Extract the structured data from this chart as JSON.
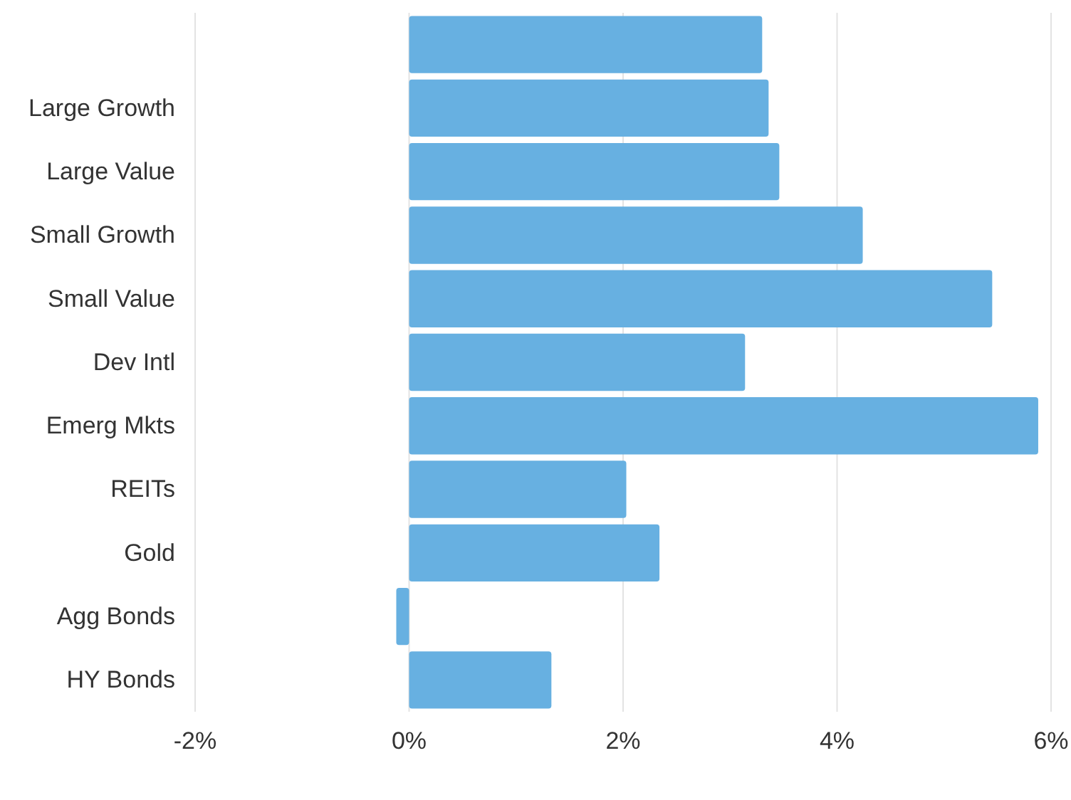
{
  "chart_data": {
    "type": "bar",
    "orientation": "horizontal",
    "categories": [
      null,
      "Large Growth",
      "Large Value",
      "Small Growth",
      "Small Value",
      "Dev Intl",
      "Emerg Mkts",
      "REITs",
      "Gold",
      "Agg Bonds",
      "HY Bonds"
    ],
    "values": [
      3.3,
      3.36,
      3.46,
      4.24,
      5.45,
      3.14,
      5.88,
      2.03,
      2.34,
      -0.12,
      1.33
    ],
    "color": "#67b0e1",
    "xlim": [
      -2,
      6
    ],
    "xticks": [
      {
        "value": -2,
        "label": "-2%"
      },
      {
        "value": 0,
        "label": "0%"
      },
      {
        "value": 2,
        "label": "2%"
      },
      {
        "value": 4,
        "label": "4%"
      },
      {
        "value": 6,
        "label": "6%"
      }
    ],
    "grid": "x"
  }
}
